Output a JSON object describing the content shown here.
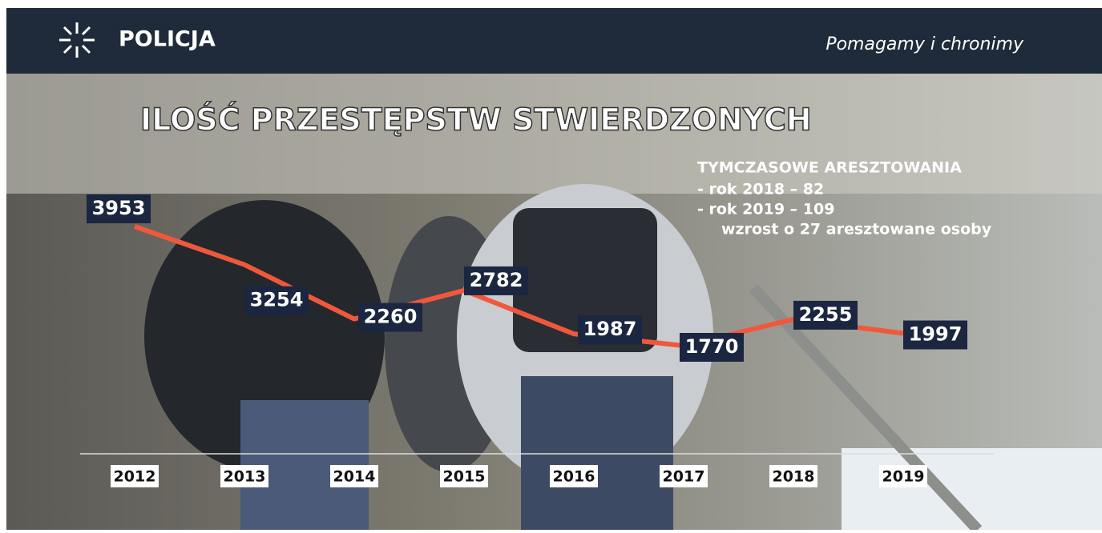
{
  "header": {
    "brand": "POLICJA",
    "slogan": "Pomagamy i chronimy"
  },
  "chart_data": {
    "type": "line",
    "title": "ILOŚĆ PRZESTĘPSTW STWIERDZONYCH",
    "categories": [
      "2012",
      "2013",
      "2014",
      "2015",
      "2016",
      "2017",
      "2018",
      "2019"
    ],
    "values": [
      3953,
      3254,
      2260,
      2782,
      1987,
      1770,
      2255,
      1997
    ],
    "color": "#f0583c",
    "annotations": [
      "TYMCZASOWE ARESZTOWANIA",
      "- rok 2018 – 82",
      "- rok 2019 – 109",
      "wzrost o 27 aresztowane osoby"
    ]
  }
}
